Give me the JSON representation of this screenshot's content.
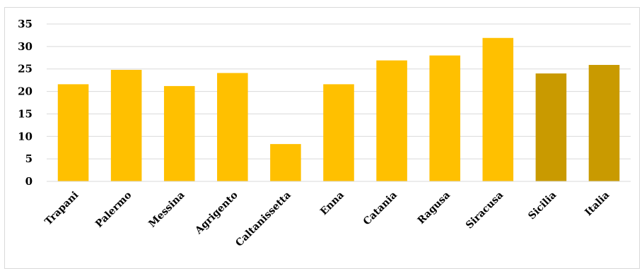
{
  "colors": {
    "province_bar": "#ffc000",
    "aggregate_bar": "#c99a00",
    "gridline": "#d9d9d9"
  },
  "chart_data": {
    "type": "bar",
    "title": "",
    "xlabel": "",
    "ylabel": "",
    "ylim": [
      0,
      35
    ],
    "yticks": [
      0,
      5,
      10,
      15,
      20,
      25,
      30,
      35
    ],
    "grid": true,
    "legend": "none",
    "categories": [
      "Trapani",
      "Palermo",
      "Messina",
      "Agrigento",
      "Caltanissetta",
      "Enna",
      "Catania",
      "Ragusa",
      "Siracusa",
      "Sicilia",
      "Italia"
    ],
    "values": [
      21.6,
      24.8,
      21.2,
      24.1,
      8.3,
      21.6,
      26.9,
      28.0,
      31.9,
      24.0,
      25.9
    ],
    "bar_colors": [
      "#ffc000",
      "#ffc000",
      "#ffc000",
      "#ffc000",
      "#ffc000",
      "#ffc000",
      "#ffc000",
      "#ffc000",
      "#ffc000",
      "#c99a00",
      "#c99a00"
    ]
  }
}
